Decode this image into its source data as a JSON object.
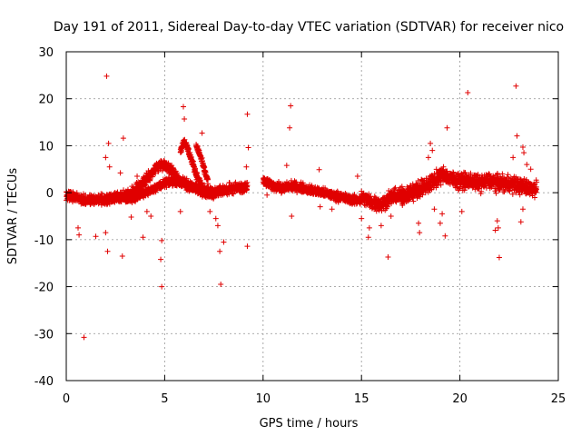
{
  "chart_data": {
    "type": "scatter",
    "title": "Day 191 of 2011, Sidereal Day-to-day VTEC variation (SDTVAR) for receiver nico",
    "xlabel": "GPS time / hours",
    "ylabel": "SDTVAR / TECUs",
    "xlim": [
      0,
      25
    ],
    "ylim": [
      -40,
      30
    ],
    "xticks": [
      0,
      5,
      10,
      15,
      20,
      25
    ],
    "yticks": [
      -40,
      -30,
      -20,
      -10,
      0,
      10,
      20,
      30
    ],
    "xtick_labels": [
      "0",
      "5",
      "10",
      "15",
      "20",
      "25"
    ],
    "ytick_labels": [
      "-40",
      "-30",
      "-20",
      "-10",
      "0",
      "10",
      "20",
      "30"
    ],
    "grid": true,
    "marker": "+",
    "color": "#e00000",
    "series": [
      {
        "name": "SDTVAR",
        "segments": [
          {
            "x": [
              0.0,
              0.5,
              1.0,
              1.5,
              2.0,
              2.5,
              3.0,
              3.5,
              3.8,
              4.0,
              4.2,
              4.4,
              4.6,
              4.8,
              5.0,
              5.2,
              5.4,
              5.6,
              5.8,
              6.0,
              6.5,
              7.0,
              7.5,
              8.0,
              8.5,
              9.0,
              9.2
            ],
            "y": [
              -0.5,
              -1.0,
              -1.5,
              -1.5,
              -1.5,
              -1.0,
              -0.5,
              0.5,
              1.5,
              2.5,
              3.5,
              4.5,
              5.5,
              6.0,
              6.0,
              5.5,
              4.5,
              3.5,
              2.5,
              2.0,
              1.0,
              0.5,
              0.0,
              0.5,
              1.0,
              1.0,
              1.0
            ],
            "spread": 1.6
          },
          {
            "x": [
              3.0,
              3.5,
              4.0,
              4.5,
              5.0,
              5.5,
              6.0,
              6.5,
              7.0,
              7.5
            ],
            "y": [
              -1.5,
              -1.0,
              0.0,
              1.0,
              2.0,
              2.5,
              2.0,
              1.0,
              0.0,
              -0.5
            ],
            "spread": 1.2
          },
          {
            "x": [
              5.8,
              6.0,
              6.2,
              6.4,
              6.6,
              6.8,
              7.0
            ],
            "y": [
              9.0,
              11.0,
              9.0,
              6.5,
              4.0,
              2.0,
              0.5
            ],
            "spread": 1.2
          },
          {
            "x": [
              6.6,
              6.8,
              7.0,
              7.2
            ],
            "y": [
              10.0,
              8.0,
              5.0,
              2.5
            ],
            "spread": 1.0
          },
          {
            "x": [
              10.0,
              10.5,
              11.0,
              11.5,
              12.0,
              12.5,
              13.0,
              13.5,
              14.0,
              14.5,
              15.0
            ],
            "y": [
              2.5,
              1.5,
              1.0,
              1.5,
              1.0,
              0.5,
              0.0,
              -0.5,
              -1.0,
              -1.5,
              -1.5
            ],
            "spread": 1.4
          },
          {
            "x": [
              15.0,
              15.5,
              16.0,
              16.5,
              17.0,
              17.5,
              18.0
            ],
            "y": [
              -1.0,
              -2.0,
              -2.5,
              -1.0,
              -0.5,
              0.0,
              0.5
            ],
            "spread": 2.2
          },
          {
            "x": [
              17.0,
              17.5,
              18.0,
              18.5,
              19.0,
              19.2,
              19.5,
              20.0,
              20.5,
              21.0,
              21.5,
              22.0,
              22.5,
              23.0,
              23.5,
              23.9
            ],
            "y": [
              -1.5,
              0.0,
              1.0,
              2.0,
              3.5,
              4.0,
              3.0,
              2.5,
              2.5,
              2.0,
              2.5,
              2.0,
              2.0,
              1.5,
              1.0,
              1.0
            ],
            "spread": 2.4
          }
        ],
        "outliers": [
          {
            "x": 2.05,
            "y": 24.8
          },
          {
            "x": 0.9,
            "y": -30.8
          },
          {
            "x": 4.85,
            "y": -20.0
          },
          {
            "x": 7.85,
            "y": -19.5
          },
          {
            "x": 9.2,
            "y": 16.7
          },
          {
            "x": 11.4,
            "y": 18.5
          },
          {
            "x": 11.35,
            "y": 13.8
          },
          {
            "x": 20.4,
            "y": 21.3
          },
          {
            "x": 22.85,
            "y": 22.7
          },
          {
            "x": 16.35,
            "y": -13.7
          },
          {
            "x": 22.0,
            "y": -13.8
          },
          {
            "x": 19.35,
            "y": 13.8
          },
          {
            "x": 9.2,
            "y": -11.4
          },
          {
            "x": 2.1,
            "y": -12.5
          },
          {
            "x": 2.85,
            "y": -13.5
          },
          {
            "x": 5.95,
            "y": 18.3
          },
          {
            "x": 6.0,
            "y": 15.7
          },
          {
            "x": 2.15,
            "y": 10.5
          },
          {
            "x": 2.9,
            "y": 11.6
          },
          {
            "x": 9.25,
            "y": 9.6
          },
          {
            "x": 4.8,
            "y": -14.2
          },
          {
            "x": 4.85,
            "y": -10.2
          },
          {
            "x": 3.9,
            "y": -9.5
          },
          {
            "x": 1.5,
            "y": -9.3
          },
          {
            "x": 19.25,
            "y": -9.2
          },
          {
            "x": 15.35,
            "y": -9.5
          },
          {
            "x": 22.9,
            "y": 12.1
          },
          {
            "x": 23.2,
            "y": 9.7
          },
          {
            "x": 23.25,
            "y": 8.5
          },
          {
            "x": 18.5,
            "y": 10.5
          },
          {
            "x": 18.6,
            "y": 9.0
          },
          {
            "x": 18.4,
            "y": 7.5
          },
          {
            "x": 7.8,
            "y": -12.5
          },
          {
            "x": 8.0,
            "y": -10.5
          },
          {
            "x": 12.85,
            "y": 4.9
          },
          {
            "x": 11.2,
            "y": 5.8
          },
          {
            "x": 11.45,
            "y": -5.0
          },
          {
            "x": 21.8,
            "y": -8.0
          },
          {
            "x": 21.95,
            "y": -7.5
          },
          {
            "x": 23.1,
            "y": -6.2
          },
          {
            "x": 23.2,
            "y": -3.5
          },
          {
            "x": 2.0,
            "y": -8.5
          },
          {
            "x": 0.6,
            "y": -7.5
          },
          {
            "x": 0.65,
            "y": -9.0
          },
          {
            "x": 2.0,
            "y": 7.5
          },
          {
            "x": 2.2,
            "y": 5.5
          },
          {
            "x": 2.75,
            "y": 4.2
          },
          {
            "x": 3.3,
            "y": -5.2
          },
          {
            "x": 4.1,
            "y": -4.0
          },
          {
            "x": 4.3,
            "y": -5.0
          },
          {
            "x": 5.8,
            "y": -4.0
          },
          {
            "x": 6.9,
            "y": 12.7
          },
          {
            "x": 7.3,
            "y": -4.0
          },
          {
            "x": 7.6,
            "y": -5.5
          },
          {
            "x": 7.7,
            "y": -7.0
          },
          {
            "x": 9.15,
            "y": 5.5
          },
          {
            "x": 17.95,
            "y": -8.5
          },
          {
            "x": 17.9,
            "y": -6.5
          },
          {
            "x": 16.0,
            "y": -7.0
          },
          {
            "x": 15.4,
            "y": -7.5
          },
          {
            "x": 16.5,
            "y": -5.0
          },
          {
            "x": 19.0,
            "y": -6.5
          },
          {
            "x": 19.1,
            "y": -4.5
          },
          {
            "x": 18.7,
            "y": -3.5
          },
          {
            "x": 21.9,
            "y": -6.0
          },
          {
            "x": 23.4,
            "y": 6.0
          },
          {
            "x": 23.6,
            "y": 5.0
          },
          {
            "x": 22.7,
            "y": 7.5
          },
          {
            "x": 20.1,
            "y": -4.0
          },
          {
            "x": 14.8,
            "y": 3.5
          },
          {
            "x": 15.0,
            "y": -5.5
          },
          {
            "x": 3.6,
            "y": 3.5
          },
          {
            "x": 12.9,
            "y": -3.0
          },
          {
            "x": 13.5,
            "y": -3.5
          },
          {
            "x": 10.2,
            "y": -0.5
          }
        ]
      }
    ]
  }
}
